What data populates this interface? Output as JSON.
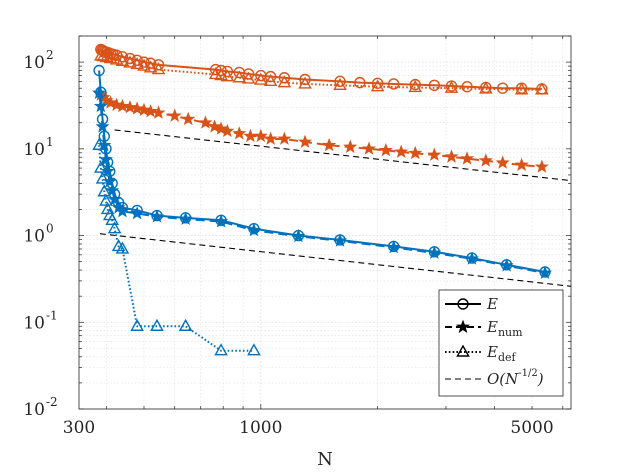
{
  "chart_data": {
    "type": "line",
    "x_scale": "log",
    "y_scale": "log",
    "xlabel": "N",
    "ylabel": "",
    "xlim": [
      340,
      6300
    ],
    "ylim": [
      0.01,
      200
    ],
    "x_ticks": [
      300,
      1000,
      5000
    ],
    "y_ticks": [
      0.01,
      0.1,
      1,
      10,
      100
    ],
    "y_tick_labels": [
      "10",
      "10",
      "10",
      "10",
      "10"
    ],
    "y_tick_exponents": [
      "-2",
      "-1",
      "0",
      "1",
      "2"
    ],
    "grid": "major and minor, dotted",
    "legend_position": "bottom-right",
    "legend": [
      {
        "label": "E",
        "style": "solid",
        "marker": "circle"
      },
      {
        "label": "E",
        "subscript": "num",
        "style": "dashed",
        "marker": "star"
      },
      {
        "label": "E",
        "subscript": "def",
        "style": "dotted",
        "marker": "triangle"
      },
      {
        "label": "O(N",
        "superscript": "-1/2",
        "suffix": ")",
        "style": "dashed-reference"
      }
    ],
    "colors": {
      "orange": "#D95319",
      "blue": "#0072BD",
      "reference": "#000000"
    },
    "series": [
      {
        "group": "orange",
        "style": "solid",
        "marker": "circle",
        "x": [
          387,
          390,
          393,
          396,
          400,
          405,
          410,
          416,
          425,
          440,
          460,
          480,
          500,
          520,
          545,
          765,
          790,
          820,
          880,
          930,
          1000,
          1060,
          1150,
          1300,
          1600,
          1800,
          2000,
          2200,
          2500,
          2800,
          3100,
          3400,
          3800,
          4200,
          4700,
          5300
        ],
        "y": [
          140,
          137,
          135,
          132,
          130,
          128,
          125,
          123,
          120,
          115,
          110,
          105,
          100,
          97,
          93,
          82,
          80,
          78,
          76,
          73,
          70,
          68,
          66,
          63,
          60,
          58,
          57,
          56,
          55,
          54,
          53,
          52,
          51,
          50,
          50,
          49
        ]
      },
      {
        "group": "orange",
        "style": "dotted",
        "marker": "triangle",
        "x": [
          387,
          393,
          400,
          410,
          425,
          440,
          460,
          480,
          500,
          520,
          545,
          765,
          790,
          820,
          880,
          930,
          1000,
          1060,
          1150,
          1300,
          1600,
          2000,
          2500,
          3100,
          3800,
          4700,
          5300
        ],
        "y": [
          118,
          116,
          113,
          110,
          106,
          102,
          98,
          94,
          90,
          86,
          82,
          72,
          70,
          68,
          66,
          64,
          62,
          60,
          58,
          56,
          54,
          52,
          51,
          50,
          49,
          48,
          48
        ]
      },
      {
        "group": "orange",
        "style": "dashed",
        "marker": "star",
        "x": [
          387,
          393,
          400,
          410,
          425,
          440,
          460,
          480,
          500,
          520,
          545,
          600,
          650,
          720,
          760,
          790,
          820,
          880,
          940,
          1000,
          1060,
          1150,
          1300,
          1500,
          1700,
          1900,
          2100,
          2300,
          2500,
          2800,
          3100,
          3400,
          3800,
          4200,
          4700,
          5300
        ],
        "y": [
          42,
          39,
          36,
          34,
          32,
          31,
          30,
          29,
          28,
          27,
          26,
          24,
          22,
          20,
          18,
          17,
          16,
          15,
          14,
          14,
          13,
          13,
          12,
          11,
          10.5,
          10,
          9.6,
          9.2,
          8.9,
          8.5,
          8.1,
          7.7,
          7.3,
          6.9,
          6.5,
          6.2
        ]
      },
      {
        "group": "blue",
        "style": "solid",
        "marker": "circle",
        "x": [
          383,
          387,
          391,
          395,
          399,
          403,
          408,
          414,
          420,
          430,
          440,
          480,
          540,
          640,
          790,
          960,
          1250,
          1600,
          2200,
          2800,
          3500,
          4300,
          5400
        ],
        "y": [
          80,
          45,
          22,
          14,
          10,
          7,
          5.5,
          4,
          3,
          2.4,
          2.1,
          1.95,
          1.7,
          1.6,
          1.5,
          1.2,
          1.0,
          0.89,
          0.75,
          0.65,
          0.55,
          0.46,
          0.38
        ]
      },
      {
        "group": "blue",
        "style": "dashed",
        "marker": "star",
        "x": [
          383,
          387,
          391,
          395,
          399,
          403,
          408,
          414,
          420,
          430,
          440,
          480,
          540,
          640,
          790,
          960,
          1250,
          1600,
          2200,
          2800,
          3500,
          4300,
          5400
        ],
        "y": [
          44,
          31,
          18,
          11,
          7.5,
          5.5,
          4.2,
          3.3,
          2.6,
          2.1,
          1.9,
          1.8,
          1.65,
          1.55,
          1.45,
          1.15,
          0.98,
          0.87,
          0.73,
          0.63,
          0.54,
          0.45,
          0.37
        ]
      },
      {
        "group": "blue",
        "style": "dotted",
        "marker": "triangle",
        "x": [
          383,
          387,
          391,
          395,
          399,
          403,
          408,
          414,
          420,
          430,
          440,
          480,
          540,
          640,
          790,
          960
        ],
        "y": [
          11,
          6,
          4.5,
          3.2,
          2.5,
          2,
          1.7,
          1.5,
          1.2,
          0.75,
          0.7,
          0.09,
          0.09,
          0.09,
          0.047,
          0.047
        ]
      }
    ],
    "reference_lines": [
      {
        "label": "O(N^-1/2)",
        "x": [
          420,
          6300
        ],
        "y": [
          16.5,
          4.3
        ]
      },
      {
        "label": "O(N^-1/2)",
        "x": [
          385,
          6300
        ],
        "y": [
          1.05,
          0.26
        ]
      }
    ]
  }
}
